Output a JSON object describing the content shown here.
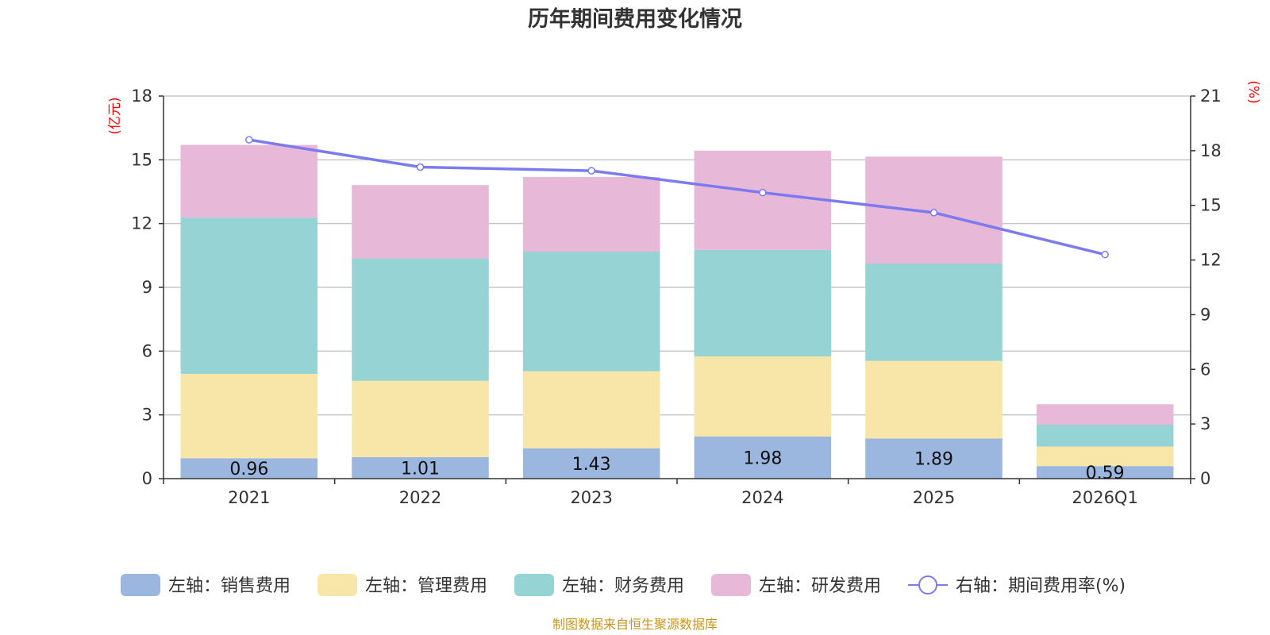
{
  "chart_data": {
    "type": "bar",
    "stacked": true,
    "title": "历年期间费用变化情况",
    "left_unit": "(亿元)",
    "right_unit": "(%)",
    "categories": [
      "2021",
      "2022",
      "2023",
      "2024",
      "2025",
      "2026Q1"
    ],
    "left_axis": {
      "min": 0,
      "max": 18,
      "ticks": [
        0,
        3,
        6,
        9,
        12,
        15,
        18
      ]
    },
    "right_axis": {
      "min": 0,
      "max": 21,
      "ticks": [
        0,
        3,
        6,
        9,
        12,
        15,
        18,
        21
      ]
    },
    "series": [
      {
        "name": "左轴：销售费用",
        "axis": "left",
        "color": "#9bb7e0",
        "values": [
          0.96,
          1.01,
          1.43,
          1.98,
          1.89,
          0.59
        ],
        "labels": [
          "0.96",
          "1.01",
          "1.43",
          "1.98",
          "1.89",
          "0.59"
        ]
      },
      {
        "name": "左轴：管理费用",
        "axis": "left",
        "color": "#f8e6a8",
        "values": [
          3.97,
          3.59,
          3.62,
          3.77,
          3.65,
          0.92
        ]
      },
      {
        "name": "左轴：财务费用",
        "axis": "left",
        "color": "#96d3d4",
        "values": [
          7.35,
          5.76,
          5.63,
          5.01,
          4.58,
          1.03
        ]
      },
      {
        "name": "左轴：研发费用",
        "axis": "left",
        "color": "#e8b8d9",
        "values": [
          3.42,
          3.45,
          3.51,
          4.67,
          5.03,
          0.96
        ]
      },
      {
        "name": "右轴：期间费用率(%)",
        "axis": "right",
        "type": "line",
        "color": "#7b7bef",
        "values": [
          18.6,
          17.1,
          16.9,
          15.7,
          14.6,
          12.3
        ]
      }
    ],
    "grid": true,
    "legend_position": "bottom"
  },
  "source_text": "制图数据来自恒生聚源数据库"
}
